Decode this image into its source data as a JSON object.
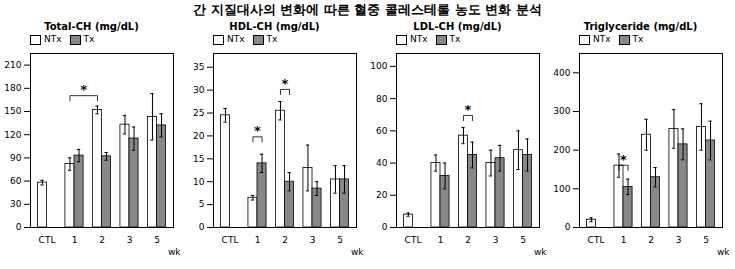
{
  "title": "간 지질대사의 변화에 따른 혈중 콜레스테롤 농도 변화 분석",
  "chart_data": [
    {
      "type": "bar",
      "title": "Total-CH  (mg/dL)",
      "xlabel": "wk",
      "categories": [
        "CTL",
        "1",
        "2",
        "3",
        "5"
      ],
      "series": [
        {
          "name": "NTx",
          "color": "white",
          "values": [
            58,
            82,
            152,
            133,
            143
          ],
          "errors": [
            3,
            8,
            5,
            12,
            30
          ]
        },
        {
          "name": "Tx",
          "color": "#888888",
          "values": [
            null,
            93,
            92,
            115,
            132
          ],
          "errors": [
            null,
            8,
            5,
            15,
            15
          ]
        }
      ],
      "ylim": [
        0,
        225
      ],
      "yticks": [
        0,
        30,
        60,
        90,
        120,
        150,
        180,
        210
      ],
      "legend": "upper left",
      "grid": false,
      "annotations": [
        {
          "text": "*",
          "from": {
            "category": "1",
            "series": "NTx"
          },
          "to": {
            "category": "2",
            "series": "NTx"
          },
          "y": 170.5
        }
      ]
    },
    {
      "type": "bar",
      "title": "HDL-CH  (mg/dL)",
      "xlabel": "wk",
      "categories": [
        "CTL",
        "1",
        "2",
        "3",
        "5"
      ],
      "series": [
        {
          "name": "NTx",
          "color": "white",
          "values": [
            24.5,
            6.5,
            25.5,
            13,
            10.5
          ],
          "errors": [
            1.5,
            0.5,
            2,
            5,
            3
          ]
        },
        {
          "name": "Tx",
          "color": "#888888",
          "values": [
            null,
            14,
            10,
            8.5,
            10.5
          ],
          "errors": [
            null,
            2,
            2,
            1.5,
            3
          ]
        }
      ],
      "ylim": [
        0,
        38
      ],
      "yticks": [
        0,
        5,
        10,
        15,
        20,
        25,
        30,
        35
      ],
      "legend": "upper left",
      "grid": false,
      "annotations": [
        {
          "text": "*",
          "from": {
            "category": "1",
            "series": "NTx"
          },
          "to": {
            "category": "1",
            "series": "Tx"
          },
          "y": 19.8
        },
        {
          "text": "*",
          "from": {
            "category": "2",
            "series": "NTx"
          },
          "to": {
            "category": "2",
            "series": "Tx"
          },
          "y": 30.16
        }
      ]
    },
    {
      "type": "bar",
      "title": "LDL-CH  (mg/dL)",
      "xlabel": "wk",
      "categories": [
        "CTL",
        "1",
        "2",
        "3",
        "5"
      ],
      "series": [
        {
          "name": "NTx",
          "color": "white",
          "values": [
            8,
            40,
            57,
            40,
            48
          ],
          "errors": [
            1,
            5,
            5,
            8,
            12
          ]
        },
        {
          "name": "Tx",
          "color": "#888888",
          "values": [
            null,
            32,
            45,
            43,
            45
          ],
          "errors": [
            null,
            8,
            8,
            8,
            10
          ]
        }
      ],
      "ylim": [
        0,
        108
      ],
      "yticks": [
        0,
        20,
        40,
        60,
        80,
        100
      ],
      "legend": "upper left",
      "grid": false,
      "annotations": [
        {
          "text": "*",
          "from": {
            "category": "2",
            "series": "NTx"
          },
          "to": {
            "category": "2",
            "series": "Tx"
          },
          "y": 69.56
        }
      ]
    },
    {
      "type": "bar",
      "title": "Triglyceride  (mg/dL)",
      "xlabel": "wk",
      "categories": [
        "CTL",
        "1",
        "2",
        "3",
        "5"
      ],
      "series": [
        {
          "name": "NTx",
          "color": "white",
          "values": [
            20,
            160,
            240,
            255,
            260
          ],
          "errors": [
            5,
            30,
            40,
            50,
            60
          ]
        },
        {
          "name": "Tx",
          "color": "#888888",
          "values": [
            null,
            105,
            130,
            215,
            225
          ],
          "errors": [
            null,
            20,
            25,
            40,
            50
          ]
        }
      ],
      "ylim": [
        0,
        450
      ],
      "yticks": [
        0,
        100,
        200,
        300,
        400
      ],
      "legend": "upper left",
      "grid": false,
      "annotations": [
        {
          "text": "*",
          "from": {
            "category": "1",
            "series": "NTx"
          },
          "to": {
            "category": "1",
            "series": "Tx"
          },
          "y": 161
        }
      ]
    }
  ]
}
